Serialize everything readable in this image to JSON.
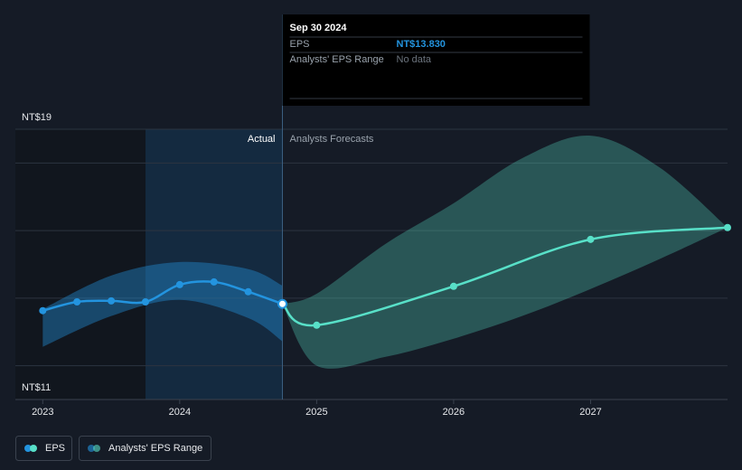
{
  "chart_data": {
    "type": "line",
    "xlim": [
      2022.8,
      2028.0
    ],
    "xticks": [
      2023,
      2024,
      2025,
      2026,
      2027
    ],
    "ylim": [
      11,
      19
    ],
    "yticks": [
      {
        "value": 11,
        "label": "NT$11"
      },
      {
        "value": 19,
        "label": "NT$19"
      }
    ],
    "grid_values": [
      12,
      14,
      16,
      18,
      19
    ],
    "highlight_x": [
      2023.75,
      2024.75
    ],
    "annotations": {
      "actual": "Actual",
      "forecast": "Analysts Forecasts"
    },
    "series": [
      {
        "name": "EPS",
        "color": "#2394df",
        "forecast_color": "#58e0c8",
        "x": [
          2023.0,
          2023.25,
          2023.5,
          2023.75,
          2024.0,
          2024.25,
          2024.5,
          2024.75,
          2025.0,
          2026.0,
          2027.0,
          2028.0
        ],
        "values": [
          13.63,
          13.89,
          13.92,
          13.89,
          14.4,
          14.48,
          14.19,
          13.83,
          13.2,
          14.35,
          15.74,
          16.09
        ]
      },
      {
        "name": "Analysts' EPS Range",
        "color": "#2394df",
        "forecast_color": "#58e0c8",
        "ranges": [
          {
            "x": [
              2023.0,
              2023.5,
              2024.0,
              2024.5,
              2024.75
            ],
            "low": [
              12.56,
              13.47,
              13.95,
              13.41,
              12.72
            ],
            "high": [
              13.68,
              14.67,
              15.07,
              14.86,
              14.37
            ]
          },
          {
            "x": [
              2024.75,
              2025.0,
              2025.5,
              2026.0,
              2026.5,
              2027.0,
              2027.5,
              2028.0
            ],
            "low": [
              13.83,
              12.0,
              12.26,
              12.8,
              13.47,
              14.27,
              15.15,
              16.09
            ],
            "high": [
              13.83,
              14.13,
              15.6,
              16.81,
              18.14,
              18.81,
              17.88,
              16.09
            ]
          }
        ]
      }
    ],
    "tooltip": {
      "date": "Sep 30 2024",
      "x": 2024.75,
      "rows": [
        {
          "label": "EPS",
          "value": 13.83,
          "value_label": "NT$13.830"
        },
        {
          "label": "Analysts' EPS Range",
          "value_label": "No data"
        }
      ]
    }
  }
}
